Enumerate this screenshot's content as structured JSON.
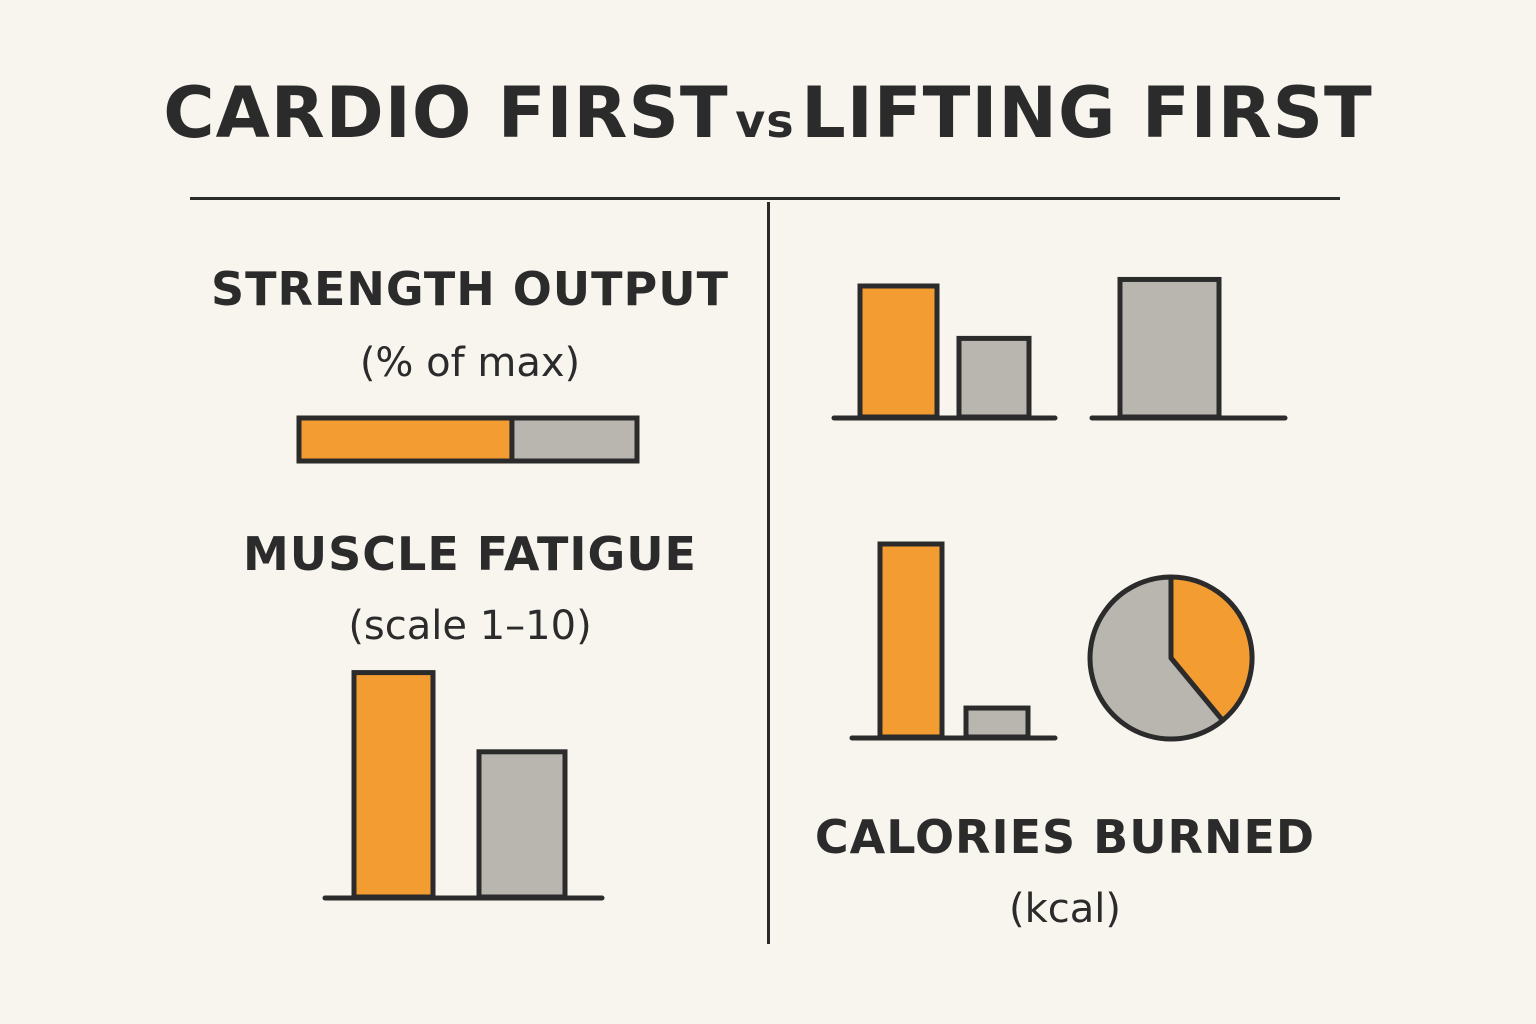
{
  "title": {
    "left": "CARDIO FIRST",
    "connector": "vs",
    "right": "LIFTING FIRST"
  },
  "colors": {
    "cardio_first": "#f39c32",
    "lifting_first": "#b9b6b0",
    "ink": "#2b2b2b",
    "background": "#f8f5ef"
  },
  "chart_data": [
    {
      "id": "strength-output",
      "type": "bar",
      "orientation": "horizontal-stacked",
      "title": "STRENGTH OUTPUT",
      "unit_label": "(% of max)",
      "series": [
        {
          "color": "cardio_first",
          "values": [
            63
          ]
        },
        {
          "color": "lifting_first",
          "values": [
            37
          ]
        }
      ],
      "ylim": [
        0,
        100
      ]
    },
    {
      "id": "muscle-fatigue",
      "type": "bar",
      "title": "MUSCLE FATIGUE",
      "unit_label": "(scale 1–10)",
      "series": [
        {
          "color": "cardio_first",
          "values": [
            8.5
          ]
        },
        {
          "color": "lifting_first",
          "values": [
            5.5
          ]
        }
      ],
      "ylim": [
        0,
        10
      ]
    },
    {
      "id": "top-right-bars-a",
      "type": "bar",
      "series": [
        {
          "color": "cardio_first",
          "values": [
            10
          ]
        },
        {
          "color": "lifting_first",
          "values": [
            6
          ]
        }
      ],
      "ylim": [
        0,
        10
      ]
    },
    {
      "id": "top-right-bars-b",
      "type": "bar",
      "series": [
        {
          "color": "lifting_first",
          "values": [
            10.5
          ]
        }
      ],
      "ylim": [
        0,
        10
      ]
    },
    {
      "id": "calories-bars",
      "type": "bar",
      "series": [
        {
          "color": "cardio_first",
          "values": [
            10
          ]
        },
        {
          "color": "lifting_first",
          "values": [
            1.5
          ]
        }
      ],
      "ylim": [
        0,
        10
      ]
    },
    {
      "id": "calories-pie",
      "type": "pie",
      "title": "CALORIES BURNED",
      "unit_label": "(kcal)",
      "slices": [
        {
          "color": "cardio_first",
          "value": 39
        },
        {
          "color": "lifting_first",
          "value": 61
        }
      ]
    }
  ]
}
